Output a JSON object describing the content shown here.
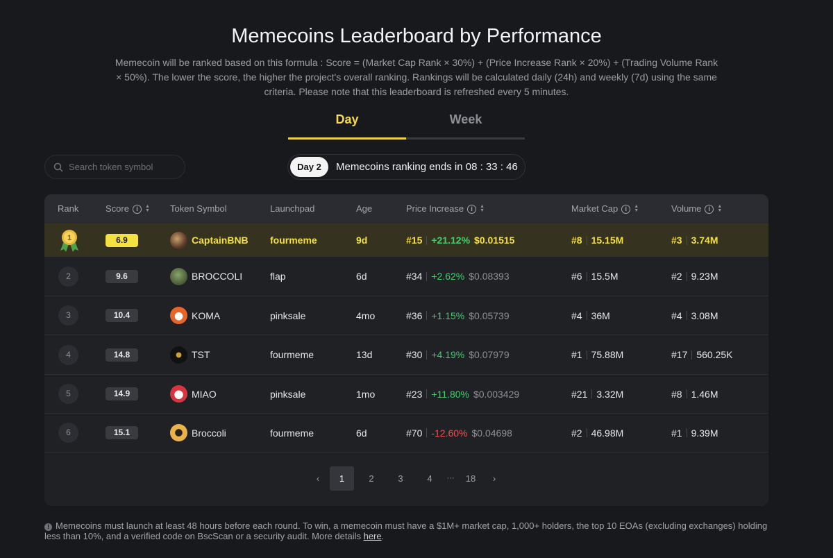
{
  "page": {
    "title": "Memecoins Leaderboard by Performance",
    "description": "Memecoin will be ranked based on this formula : Score = (Market Cap Rank × 30%) + (Price Increase Rank × 20%) + (Trading Volume Rank × 50%). The lower the score, the higher the project's overall ranking. Rankings will be calculated daily (24h) and weekly (7d) using the same criteria. Please note that this leaderboard is refreshed every 5 minutes."
  },
  "tabs": [
    {
      "label": "Day",
      "active": true
    },
    {
      "label": "Week",
      "active": false
    }
  ],
  "search": {
    "placeholder": "Search token symbol"
  },
  "countdown": {
    "day_label": "Day 2",
    "text": "Memecoins ranking ends in 08 : 33 : 46"
  },
  "table": {
    "headers": {
      "rank": "Rank",
      "score": "Score",
      "token": "Token Symbol",
      "launchpad": "Launchpad",
      "age": "Age",
      "price": "Price Increase",
      "mcap": "Market Cap",
      "volume": "Volume"
    },
    "rows": [
      {
        "rank": "1",
        "score": "6.9",
        "token": "CaptainBNB",
        "launchpad": "fourmeme",
        "age": "9d",
        "price_rank": "#15",
        "price_change": "+21.12%",
        "price": "$0.01515",
        "mcap_rank": "#8",
        "mcap": "15.15M",
        "vol_rank": "#3",
        "vol": "3.74M",
        "trend": "up"
      },
      {
        "rank": "2",
        "score": "9.6",
        "token": "BROCCOLI",
        "launchpad": "flap",
        "age": "6d",
        "price_rank": "#34",
        "price_change": "+2.62%",
        "price": "$0.08393",
        "mcap_rank": "#6",
        "mcap": "15.5M",
        "vol_rank": "#2",
        "vol": "9.23M",
        "trend": "up"
      },
      {
        "rank": "3",
        "score": "10.4",
        "token": "KOMA",
        "launchpad": "pinksale",
        "age": "4mo",
        "price_rank": "#36",
        "price_change": "+1.15%",
        "price": "$0.05739",
        "mcap_rank": "#4",
        "mcap": "36M",
        "vol_rank": "#4",
        "vol": "3.08M",
        "trend": "up"
      },
      {
        "rank": "4",
        "score": "14.8",
        "token": "TST",
        "launchpad": "fourmeme",
        "age": "13d",
        "price_rank": "#30",
        "price_change": "+4.19%",
        "price": "$0.07979",
        "mcap_rank": "#1",
        "mcap": "75.88M",
        "vol_rank": "#17",
        "vol": "560.25K",
        "trend": "up"
      },
      {
        "rank": "5",
        "score": "14.9",
        "token": "MIAO",
        "launchpad": "pinksale",
        "age": "1mo",
        "price_rank": "#23",
        "price_change": "+11.80%",
        "price": "$0.003429",
        "mcap_rank": "#21",
        "mcap": "3.32M",
        "vol_rank": "#8",
        "vol": "1.46M",
        "trend": "up"
      },
      {
        "rank": "6",
        "score": "15.1",
        "token": "Broccoli",
        "launchpad": "fourmeme",
        "age": "6d",
        "price_rank": "#70",
        "price_change": "-12.60%",
        "price": "$0.04698",
        "mcap_rank": "#2",
        "mcap": "46.98M",
        "vol_rank": "#1",
        "vol": "9.39M",
        "trend": "down"
      }
    ]
  },
  "pagination": {
    "prev": "‹",
    "pages": [
      "1",
      "2",
      "3",
      "4"
    ],
    "ellipsis": "···",
    "last": "18",
    "next": "›",
    "current": "1"
  },
  "footnote": {
    "text": "Memecoins must launch at least 48 hours before each round. To win, a memecoin must have a $1M+ market cap, 1,000+ holders, the top 10 EOAs (excluding exchanges) holding less than 10%, and a verified code on BscScan or a security audit. More details ",
    "link_label": "here",
    "link_suffix": "."
  },
  "colors": {
    "accent": "#f5e043",
    "positive": "#3ecf6d",
    "negative": "#ef5353",
    "background": "#18191c"
  },
  "icons": {
    "search": "search-icon",
    "info": "info-icon",
    "sort": "sort-icon",
    "medal": "gold-medal-icon"
  }
}
